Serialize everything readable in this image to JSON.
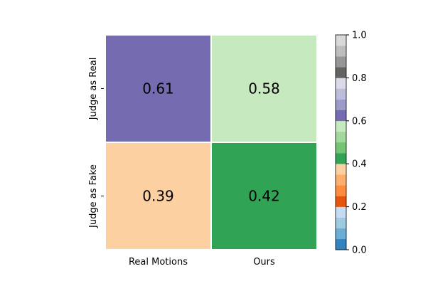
{
  "chart_data": {
    "type": "heatmap",
    "x_categories": [
      "Real Motions",
      "Ours"
    ],
    "y_categories": [
      "Judge as Real",
      "Judge as Fake"
    ],
    "values": [
      [
        0.61,
        0.58
      ],
      [
        0.39,
        0.42
      ]
    ],
    "cell_labels": [
      [
        "0.61",
        "0.58"
      ],
      [
        "0.39",
        "0.42"
      ]
    ],
    "cell_colors": [
      [
        "#756bb1",
        "#c7e9c0"
      ],
      [
        "#fdd0a2",
        "#31a354"
      ]
    ],
    "colormap": "tab20c",
    "colorbar": {
      "range": [
        0.0,
        1.0
      ],
      "ticks": [
        "0.0",
        "0.2",
        "0.4",
        "0.6",
        "0.8",
        "1.0"
      ],
      "segments": [
        "#3182bd",
        "#6baed6",
        "#9ecae1",
        "#c6dbef",
        "#e6550d",
        "#fd8d3c",
        "#fdae6b",
        "#fdd0a2",
        "#31a354",
        "#74c476",
        "#a1d99b",
        "#c7e9c0",
        "#756bb1",
        "#9e9ac8",
        "#bcbddc",
        "#dadaeb",
        "#636363",
        "#969696",
        "#bdbdbd",
        "#d9d9d9"
      ]
    },
    "grid": false,
    "legend": "colorbar-right"
  }
}
